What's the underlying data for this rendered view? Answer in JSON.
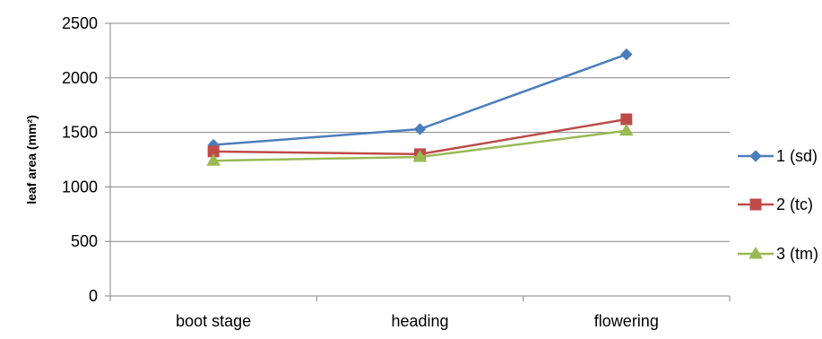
{
  "chart_data": {
    "type": "line",
    "title": "",
    "xlabel": "",
    "ylabel": "leaf area (mm²)",
    "categories": [
      "boot stage",
      "heading",
      "flowering"
    ],
    "ylim": [
      0,
      2500
    ],
    "yticks": [
      0,
      500,
      1000,
      1500,
      2000,
      2500
    ],
    "grid": true,
    "legend_position": "right",
    "series": [
      {
        "name": "1 (sd)",
        "values": [
          1385,
          1530,
          2215
        ],
        "color": "#4a7ebb",
        "marker": "diamond"
      },
      {
        "name": "2 (tc)",
        "values": [
          1325,
          1300,
          1620
        ],
        "color": "#be4b48",
        "marker": "square"
      },
      {
        "name": "3 (tm)",
        "values": [
          1240,
          1275,
          1515
        ],
        "color": "#98b954",
        "marker": "triangle"
      }
    ]
  }
}
